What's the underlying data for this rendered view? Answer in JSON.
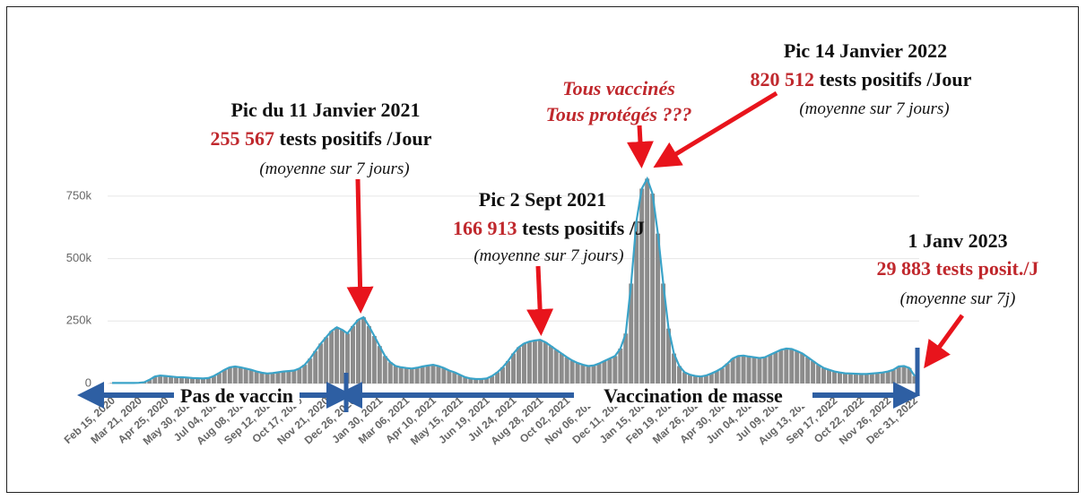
{
  "chart_data": {
    "type": "bar",
    "categories": [
      "Feb 15, 2020",
      null,
      null,
      null,
      null,
      "Mar 21, 2020",
      null,
      null,
      null,
      null,
      "Apr 25, 2020",
      null,
      null,
      null,
      null,
      "May 30, 2020",
      null,
      null,
      null,
      null,
      "Jul 04, 2020",
      null,
      null,
      null,
      null,
      "Aug 08, 2020",
      null,
      null,
      null,
      null,
      "Sep 12, 2020",
      null,
      null,
      null,
      null,
      "Oct 17, 2020",
      null,
      null,
      null,
      null,
      "Nov 21, 2020",
      null,
      null,
      null,
      null,
      "Dec 26, 2020",
      null,
      null,
      null,
      null,
      "Jan 30, 2021",
      null,
      null,
      null,
      null,
      "Mar 06, 2021",
      null,
      null,
      null,
      null,
      "Apr 10, 2021",
      null,
      null,
      null,
      null,
      "May 15, 2021",
      null,
      null,
      null,
      null,
      "Jun 19, 2021",
      null,
      null,
      null,
      null,
      "Jul 24, 2021",
      null,
      null,
      null,
      null,
      "Aug 28, 2021",
      null,
      null,
      null,
      null,
      "Oct 02, 2021",
      null,
      null,
      null,
      null,
      "Nov 06, 2021",
      null,
      null,
      null,
      null,
      "Dec 11, 2021",
      null,
      null,
      null,
      null,
      "Jan 15, 2022",
      null,
      null,
      null,
      null,
      "Feb 19, 2022",
      null,
      null,
      null,
      null,
      "Mar 26, 2022",
      null,
      null,
      null,
      null,
      "Apr 30, 2022",
      null,
      null,
      null,
      null,
      "Jun 04, 2022",
      null,
      null,
      null,
      null,
      "Jul 09, 2022",
      null,
      null,
      null,
      null,
      "Aug 13, 2022",
      null,
      null,
      null,
      null,
      "Sep 17, 2022",
      null,
      null,
      null,
      null,
      "Oct 22, 2022",
      null,
      null,
      null,
      null,
      "Nov 26, 2022",
      null,
      null,
      null,
      null,
      "Dec 31, 2022"
    ],
    "values": [
      2000,
      2000,
      2000,
      2000,
      2000,
      3000,
      5000,
      15000,
      28000,
      32000,
      30000,
      28000,
      26000,
      25000,
      24000,
      22000,
      21000,
      20000,
      22000,
      30000,
      42000,
      55000,
      65000,
      68000,
      65000,
      60000,
      55000,
      48000,
      43000,
      40000,
      42000,
      45000,
      48000,
      50000,
      52000,
      60000,
      75000,
      100000,
      130000,
      160000,
      185000,
      210000,
      225000,
      215000,
      200000,
      230000,
      255000,
      265000,
      230000,
      190000,
      150000,
      110000,
      85000,
      70000,
      65000,
      62000,
      60000,
      63000,
      68000,
      72000,
      75000,
      70000,
      62000,
      52000,
      45000,
      35000,
      25000,
      20000,
      18000,
      18000,
      20000,
      30000,
      45000,
      65000,
      90000,
      120000,
      145000,
      160000,
      168000,
      172000,
      175000,
      165000,
      150000,
      135000,
      120000,
      105000,
      92000,
      82000,
      75000,
      70000,
      72000,
      80000,
      90000,
      100000,
      110000,
      140000,
      200000,
      400000,
      650000,
      780000,
      820000,
      760000,
      600000,
      400000,
      220000,
      120000,
      70000,
      45000,
      35000,
      30000,
      28000,
      32000,
      40000,
      50000,
      62000,
      80000,
      100000,
      110000,
      112000,
      108000,
      105000,
      102000,
      105000,
      115000,
      125000,
      135000,
      140000,
      138000,
      130000,
      120000,
      105000,
      90000,
      75000,
      62000,
      55000,
      48000,
      44000,
      41000,
      40000,
      39000,
      38000,
      38000,
      40000,
      42000,
      44000,
      48000,
      55000,
      68000,
      70000,
      62000,
      30000
    ],
    "color": "#8c8c8c",
    "line_color": "#3aa3c8",
    "ylim": [
      0,
      850000
    ],
    "yticks": [
      0,
      {
        "value": 250000,
        "label": "250k"
      },
      {
        "value": 500000,
        "label": "500k"
      },
      {
        "value": 750000,
        "label": "750k"
      }
    ],
    "grid": true,
    "annotations": [
      {
        "title": "Pic du 11 Janvier 2021",
        "number": "255 567",
        "text": "tests positifs /Jour",
        "note": "(moyenne sur 7 jours)"
      },
      {
        "title": "Pic 2 Sept 2021",
        "number": "166 913",
        "text": "tests positifs /J",
        "note": "(moyenne sur 7 jours)"
      },
      {
        "line1": "Tous vaccinés",
        "line2": "Tous protégés ???"
      },
      {
        "title": "Pic 14 Janvier 2022",
        "number": "820 512",
        "text": "tests positifs /Jour",
        "note": "(moyenne sur 7 jours)"
      },
      {
        "title": "1 Janv 2023",
        "number": "29 883 tests posit./J",
        "note": "(moyenne sur 7j)"
      }
    ],
    "periods": [
      "Pas de vaccin",
      "Vaccination de masse"
    ]
  }
}
